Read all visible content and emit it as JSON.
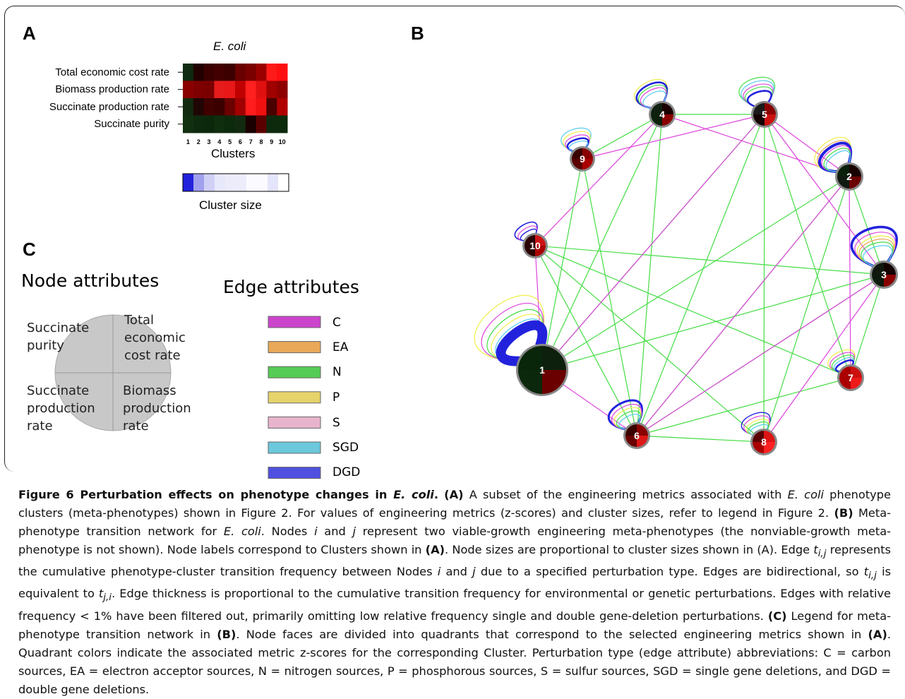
{
  "panel_letters": {
    "a": "A",
    "b": "B",
    "c": "C"
  },
  "panel_a": {
    "title": "E. coli",
    "row_labels": [
      "Total economic cost rate",
      "Biomass production rate",
      "Succinate production rate",
      "Succinate purity"
    ],
    "cluster_numbers": [
      "1",
      "2",
      "3",
      "4",
      "5",
      "6",
      "7",
      "8",
      "9",
      "10"
    ],
    "xlabel": "Clusters",
    "size_label": "Cluster size",
    "heatmap_colors": [
      [
        "#0f2a10",
        "#220000",
        "#3a0000",
        "#420000",
        "#3c0000",
        "#6a0000",
        "#7a0000",
        "#9a0000",
        "#ff1a1a",
        "#ff1010"
      ],
      [
        "#8a0000",
        "#7e0000",
        "#7a0000",
        "#e61c1c",
        "#e81818",
        "#c00000",
        "#ff2020",
        "#e01010",
        "#a00000",
        "#8e0000"
      ],
      [
        "#122a10",
        "#200505",
        "#400000",
        "#3a0000",
        "#6a0000",
        "#a00000",
        "#ff1c1c",
        "#f01010",
        "#4a0000",
        "#b00000"
      ],
      [
        "#103010",
        "#0e2a0e",
        "#0c280c",
        "#0e2e0e",
        "#0c2a0c",
        "#122a10",
        "#1a0000",
        "#5a0000",
        "#0e2a0e",
        "#0c2a0c"
      ]
    ],
    "size_colors": [
      "#2222dd",
      "#a0a0ee",
      "#d0d0f6",
      "#e8e8fb",
      "#ececfb",
      "#ececfb",
      "#fbfbff",
      "#fbfbff",
      "#e4e4fa",
      "#ffffff"
    ]
  },
  "panel_c": {
    "node_title": "Node attributes",
    "edge_title": "Edge attributes",
    "quadrants": {
      "top_left": [
        "Succinate",
        "purity"
      ],
      "top_right": [
        "Total",
        "economic",
        "cost rate"
      ],
      "bottom_left": [
        "Succinate",
        "production",
        "rate"
      ],
      "bottom_right": [
        "Biomass",
        "production",
        "rate"
      ]
    },
    "edges": [
      {
        "label": "C",
        "color": "#cc44cc"
      },
      {
        "label": "EA",
        "color": "#e8a858"
      },
      {
        "label": "N",
        "color": "#55cc55"
      },
      {
        "label": "P",
        "color": "#e6d36a"
      },
      {
        "label": "S",
        "color": "#e8b4cc"
      },
      {
        "label": "SGD",
        "color": "#6cc8dc"
      },
      {
        "label": "DGD",
        "color": "#5050e0"
      }
    ]
  },
  "panel_b": {
    "node_labels": [
      "1",
      "2",
      "3",
      "4",
      "5",
      "6",
      "7",
      "8",
      "9",
      "10"
    ],
    "edge_colors": {
      "C": "#dd44dd",
      "N": "#44dd44",
      "P": "#eeee44",
      "SGD": "#55ccee",
      "EA": "#e8a858",
      "DGD": "#2222dd"
    }
  },
  "caption": {
    "title": "Figure 6 Perturbation effects on phenotype changes in ",
    "title_species": "E. coli",
    "title_end": ".",
    "a_tag": "(A)",
    "a_text_1": " A subset of the engineering metrics associated with ",
    "species": "E. coli",
    "a_text_2": " phenotype clusters (meta-phenotypes) shown in Figure 2. For values of engineering metrics (z-scores) and cluster sizes, refer to legend in Figure 2. ",
    "b_tag": "(B)",
    "b_text_1": " Meta-phenotype transition network for ",
    "b_text_2": ". Nodes ",
    "i": "i",
    "and": " and ",
    "j": "j",
    "b_text_3": " represent two viable-growth engineering meta-phenotypes (the nonviable-growth meta-phenotype is not shown). Node labels correspond to Clusters shown in ",
    "a_ref": "(A)",
    "b_text_4": ". Node sizes are proportional to cluster sizes shown in (A). Edge ",
    "t": "t",
    "ij": "i,j",
    "b_text_5": " represents the cumulative phenotype-cluster transition frequency between Nodes ",
    "b_text_6": " due to a specified perturbation type. Edges are bidirectional, so ",
    "b_text_7": " is equivalent to ",
    "ji": "j,i",
    "b_text_8": ". Edge thickness is proportional to the cumulative transition frequency for environmental or genetic perturbations. Edges with relative frequency < 1% have been filtered out, primarily omitting low relative frequency single and double gene-deletion perturbations. ",
    "c_tag": "(C)",
    "c_text_1": " Legend for meta-phenotype transition network in ",
    "b_ref": "(B)",
    "c_text_2": ". Node faces are divided into quadrants that correspond to the selected engineering metrics shown in ",
    "c_text_3": ". Quadrant colors indicate the associated metric z-scores for the corresponding Cluster. Perturbation type (edge attribute) abbreviations: C = carbon sources, EA = electron acceptor sources, N = nitrogen sources, P = phosphorous sources, S = sulfur sources, SGD = single gene deletions, and DGD = double gene deletions."
  }
}
